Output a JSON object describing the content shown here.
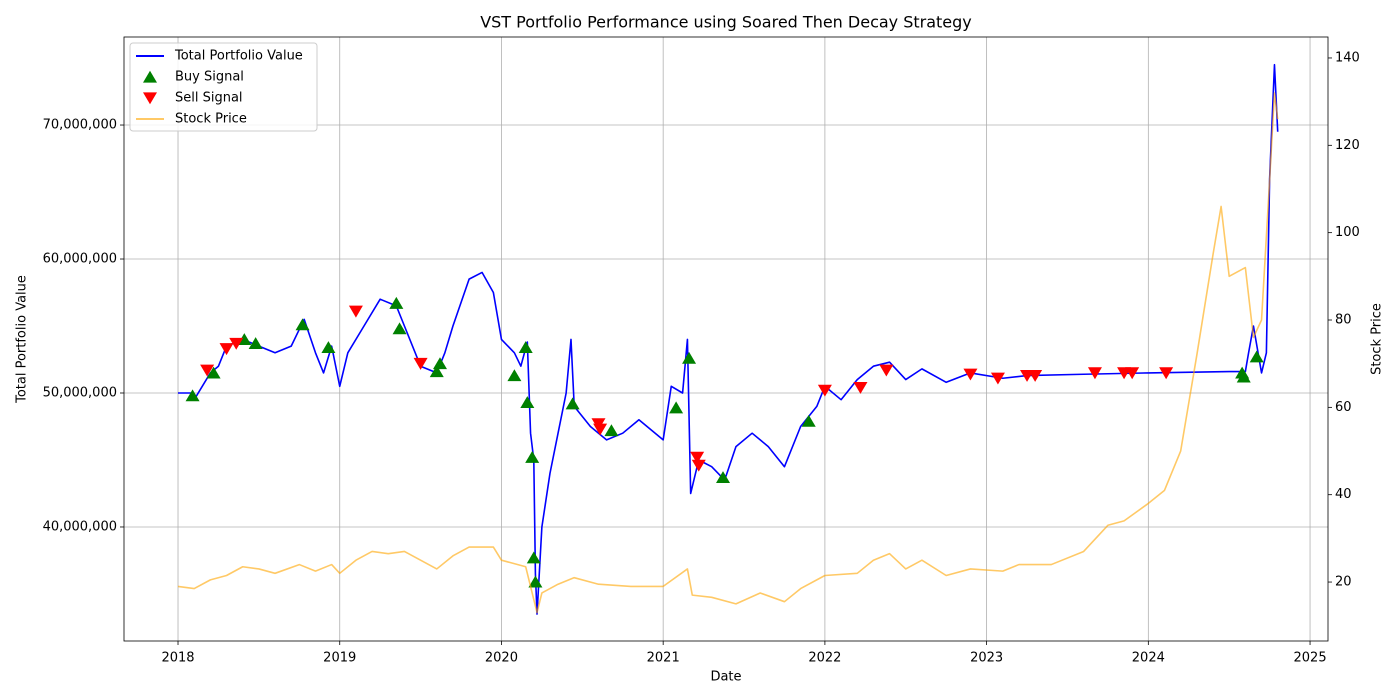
{
  "chart_data": {
    "type": "line",
    "title": "VST Portfolio Performance using Soared Then Decay Strategy",
    "xlabel": "Date",
    "ylabel": "Total Portfolio Value",
    "y2label": "Stock Price",
    "xlim": [
      2017.666,
      2025.111
    ],
    "xticks": [
      2018,
      2019,
      2020,
      2021,
      2022,
      2023,
      2024,
      2025
    ],
    "ylim": [
      31490000,
      76570000
    ],
    "yticks": [
      {
        "value": 40000000,
        "label": "40,000,000"
      },
      {
        "value": 50000000,
        "label": "50,000,000"
      },
      {
        "value": 60000000,
        "label": "60,000,000"
      },
      {
        "value": 70000000,
        "label": "70,000,000"
      }
    ],
    "y2lim": [
      6.5,
      144.8
    ],
    "y2ticks": [
      20,
      40,
      60,
      80,
      100,
      120,
      140
    ],
    "grid": true,
    "legend": "upper left",
    "series": [
      {
        "name": "Total Portfolio Value",
        "type": "line",
        "color": "#0000ff",
        "x": [
          2018.0,
          2018.08,
          2018.1,
          2018.2,
          2018.25,
          2018.3,
          2018.4,
          2018.5,
          2018.6,
          2018.7,
          2018.78,
          2018.85,
          2018.9,
          2018.95,
          2019.0,
          2019.05,
          2019.15,
          2019.25,
          2019.35,
          2019.4,
          2019.5,
          2019.6,
          2019.65,
          2019.7,
          2019.8,
          2019.88,
          2019.95,
          2020.0,
          2020.08,
          2020.12,
          2020.16,
          2020.18,
          2020.2,
          2020.21,
          2020.22,
          2020.25,
          2020.3,
          2020.35,
          2020.4,
          2020.43,
          2020.45,
          2020.55,
          2020.65,
          2020.75,
          2020.85,
          2021.0,
          2021.05,
          2021.12,
          2021.15,
          2021.17,
          2021.22,
          2021.3,
          2021.38,
          2021.45,
          2021.55,
          2021.65,
          2021.75,
          2021.85,
          2021.95,
          2022.0,
          2022.1,
          2022.2,
          2022.3,
          2022.4,
          2022.5,
          2022.6,
          2022.75,
          2022.9,
          2023.1,
          2023.25,
          2023.6,
          2024.0,
          2024.5,
          2024.6,
          2024.62,
          2024.65,
          2024.7,
          2024.73,
          2024.75,
          2024.78,
          2024.8
        ],
        "values": [
          50000000,
          50000000,
          49500000,
          51500000,
          52000000,
          53500000,
          54000000,
          53500000,
          53000000,
          53500000,
          55500000,
          53000000,
          51500000,
          53500000,
          50500000,
          53000000,
          55000000,
          57000000,
          56500000,
          55000000,
          52000000,
          51500000,
          53000000,
          55000000,
          58500000,
          59000000,
          57500000,
          54000000,
          53000000,
          52000000,
          53800000,
          47000000,
          45000000,
          36500000,
          33500000,
          40000000,
          44000000,
          47000000,
          50000000,
          54000000,
          49000000,
          47500000,
          46500000,
          47000000,
          48000000,
          46500000,
          50500000,
          50000000,
          54000000,
          42500000,
          45000000,
          44500000,
          43500000,
          46000000,
          47000000,
          46000000,
          44500000,
          47500000,
          49000000,
          50500000,
          49500000,
          51000000,
          52000000,
          52300000,
          51000000,
          51800000,
          50800000,
          51500000,
          51100000,
          51300000,
          51400000,
          51500000,
          51600000,
          51600000,
          53000000,
          55000000,
          51500000,
          53000000,
          66000000,
          74500000,
          69500000
        ]
      },
      {
        "name": "Buy Signal",
        "type": "scatter",
        "marker": "triangle-up",
        "color": "#008000",
        "x": [
          2018.09,
          2018.22,
          2018.41,
          2018.48,
          2018.77,
          2018.93,
          2019.35,
          2019.37,
          2019.6,
          2019.62,
          2020.08,
          2020.15,
          2020.16,
          2020.19,
          2020.2,
          2020.21,
          2020.44,
          2020.68,
          2021.08,
          2021.16,
          2021.37,
          2021.9,
          2024.58,
          2024.59,
          2024.67
        ],
        "values": [
          49800000,
          51500000,
          54000000,
          53700000,
          55100000,
          53400000,
          56700000,
          54800000,
          51600000,
          52200000,
          51300000,
          53400000,
          49300000,
          45200000,
          37700000,
          35900000,
          49200000,
          47200000,
          48900000,
          52600000,
          43700000,
          47900000,
          51500000,
          51200000,
          52700000
        ]
      },
      {
        "name": "Sell Signal",
        "type": "scatter",
        "marker": "triangle-down",
        "color": "#ff0000",
        "x": [
          2018.18,
          2018.3,
          2018.36,
          2019.1,
          2019.5,
          2020.6,
          2020.61,
          2021.21,
          2021.22,
          2022.0,
          2022.22,
          2022.38,
          2022.9,
          2023.07,
          2023.25,
          2023.3,
          2023.67,
          2023.85,
          2023.9,
          2024.11
        ],
        "values": [
          51700000,
          53300000,
          53700000,
          56100000,
          52200000,
          47700000,
          47300000,
          45200000,
          44600000,
          50200000,
          50400000,
          51700000,
          51400000,
          51100000,
          51300000,
          51300000,
          51500000,
          51500000,
          51500000,
          51500000
        ]
      },
      {
        "name": "Stock Price",
        "type": "line",
        "axis": "y2",
        "color": "#ffa500",
        "x": [
          2018.0,
          2018.1,
          2018.2,
          2018.3,
          2018.4,
          2018.5,
          2018.6,
          2018.75,
          2018.85,
          2018.95,
          2019.0,
          2019.1,
          2019.2,
          2019.3,
          2019.4,
          2019.5,
          2019.6,
          2019.7,
          2019.8,
          2019.95,
          2020.0,
          2020.15,
          2020.2,
          2020.22,
          2020.25,
          2020.35,
          2020.45,
          2020.6,
          2020.8,
          2021.0,
          2021.15,
          2021.18,
          2021.3,
          2021.45,
          2021.6,
          2021.75,
          2021.85,
          2022.0,
          2022.2,
          2022.3,
          2022.4,
          2022.5,
          2022.6,
          2022.75,
          2022.9,
          2023.1,
          2023.2,
          2023.4,
          2023.6,
          2023.75,
          2023.85,
          2024.0,
          2024.1,
          2024.2,
          2024.3,
          2024.4,
          2024.45,
          2024.5,
          2024.6,
          2024.65,
          2024.7,
          2024.75,
          2024.78,
          2024.8
        ],
        "values": [
          19.0,
          18.5,
          20.5,
          21.5,
          23.5,
          23.0,
          22.0,
          24.0,
          22.5,
          24.0,
          22.0,
          25.0,
          27.0,
          26.5,
          27.0,
          25.0,
          23.0,
          26.0,
          28.0,
          28.0,
          25.0,
          23.5,
          16.0,
          13.0,
          17.5,
          19.5,
          21.0,
          19.5,
          19.0,
          19.0,
          23.0,
          17.0,
          16.5,
          15.0,
          17.5,
          15.5,
          18.5,
          21.5,
          22.0,
          25.0,
          26.5,
          23.0,
          25.0,
          21.5,
          23.0,
          22.5,
          24.0,
          24.0,
          27.0,
          33.0,
          34.0,
          38.0,
          41.0,
          50.0,
          72.0,
          95.0,
          106.0,
          90.0,
          92.0,
          76.0,
          80.0,
          112.0,
          132.0,
          126.0
        ]
      }
    ]
  }
}
